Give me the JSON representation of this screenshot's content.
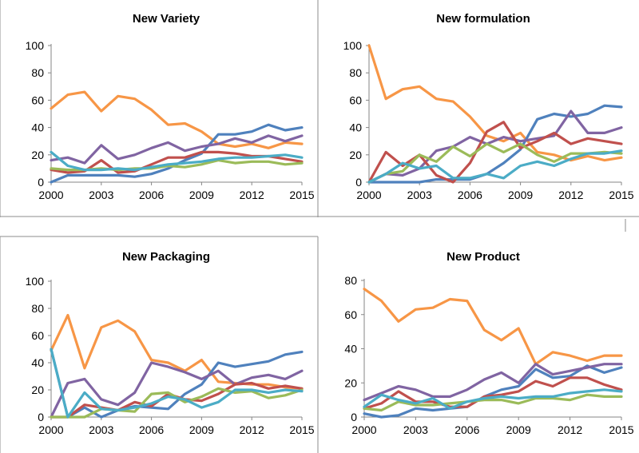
{
  "chart_data": [
    {
      "type": "line",
      "title": "New Variety",
      "xlabel": "",
      "ylabel": "",
      "x": [
        2000,
        2001,
        2002,
        2003,
        2004,
        2005,
        2006,
        2007,
        2008,
        2009,
        2010,
        2011,
        2012,
        2013,
        2014,
        2015
      ],
      "xticks": [
        "2000",
        "2003",
        "2006",
        "2009",
        "2012",
        "2015"
      ],
      "yticks": [
        0,
        20,
        40,
        60,
        80,
        100
      ],
      "ylim": [
        0,
        100
      ],
      "series": [
        {
          "name": "orange",
          "color": "#F79646",
          "values": [
            54,
            64,
            66,
            52,
            63,
            61,
            53,
            42,
            43,
            37,
            28,
            26,
            28,
            25,
            29,
            28
          ]
        },
        {
          "name": "blue",
          "color": "#4F81BD",
          "values": [
            0,
            5,
            5,
            5,
            5,
            4,
            6,
            10,
            16,
            21,
            35,
            35,
            37,
            42,
            38,
            40
          ]
        },
        {
          "name": "purple",
          "color": "#8064A2",
          "values": [
            16,
            18,
            14,
            27,
            17,
            20,
            25,
            29,
            23,
            26,
            28,
            32,
            29,
            34,
            30,
            34
          ]
        },
        {
          "name": "red",
          "color": "#C0504D",
          "values": [
            9,
            7,
            8,
            16,
            7,
            8,
            13,
            18,
            18,
            22,
            22,
            21,
            19,
            19,
            17,
            15
          ]
        },
        {
          "name": "green",
          "color": "#9BBB59",
          "values": [
            10,
            9,
            9,
            10,
            9,
            10,
            10,
            12,
            11,
            13,
            16,
            14,
            15,
            15,
            13,
            14
          ]
        },
        {
          "name": "teal",
          "color": "#4BACC6",
          "values": [
            22,
            12,
            9,
            9,
            10,
            9,
            11,
            13,
            14,
            15,
            17,
            18,
            18,
            19,
            20,
            18
          ]
        }
      ]
    },
    {
      "type": "line",
      "title": "New formulation",
      "xlabel": "",
      "ylabel": "",
      "x": [
        2000,
        2001,
        2002,
        2003,
        2004,
        2005,
        2006,
        2007,
        2008,
        2009,
        2010,
        2011,
        2012,
        2013,
        2014,
        2015
      ],
      "xticks": [
        "2000",
        "2003",
        "2006",
        "2009",
        "2012",
        "2015"
      ],
      "yticks": [
        0,
        20,
        40,
        60,
        80,
        100
      ],
      "ylim": [
        0,
        100
      ],
      "series": [
        {
          "name": "orange",
          "color": "#F79646",
          "values": [
            100,
            61,
            68,
            70,
            61,
            59,
            48,
            34,
            30,
            36,
            22,
            20,
            16,
            19,
            16,
            18
          ]
        },
        {
          "name": "blue",
          "color": "#4F81BD",
          "values": [
            0,
            0,
            0,
            0,
            2,
            2,
            2,
            6,
            14,
            24,
            46,
            50,
            48,
            50,
            56,
            55
          ]
        },
        {
          "name": "purple",
          "color": "#8064A2",
          "values": [
            0,
            6,
            5,
            10,
            23,
            26,
            33,
            28,
            33,
            30,
            32,
            34,
            52,
            36,
            36,
            40
          ]
        },
        {
          "name": "red",
          "color": "#C0504D",
          "values": [
            0,
            22,
            12,
            20,
            5,
            0,
            14,
            37,
            44,
            25,
            30,
            36,
            28,
            32,
            30,
            28
          ]
        },
        {
          "name": "green",
          "color": "#9BBB59",
          "values": [
            0,
            6,
            8,
            20,
            15,
            26,
            19,
            28,
            22,
            28,
            20,
            15,
            21,
            21,
            22,
            21
          ]
        },
        {
          "name": "teal",
          "color": "#4BACC6",
          "values": [
            0,
            6,
            14,
            10,
            12,
            3,
            3,
            6,
            3,
            12,
            15,
            12,
            17,
            21,
            21,
            23
          ]
        }
      ]
    },
    {
      "type": "line",
      "title": "New Packaging",
      "xlabel": "",
      "ylabel": "",
      "x": [
        2000,
        2001,
        2002,
        2003,
        2004,
        2005,
        2006,
        2007,
        2008,
        2009,
        2010,
        2011,
        2012,
        2013,
        2014,
        2015
      ],
      "xticks": [
        "2000",
        "2003",
        "2006",
        "2009",
        "2012",
        "2015"
      ],
      "yticks": [
        0,
        20,
        40,
        60,
        80,
        100
      ],
      "ylim": [
        0,
        100
      ],
      "series": [
        {
          "name": "orange",
          "color": "#F79646",
          "values": [
            49,
            75,
            36,
            66,
            71,
            63,
            42,
            40,
            34,
            42,
            26,
            25,
            24,
            24,
            22,
            21
          ]
        },
        {
          "name": "blue",
          "color": "#4F81BD",
          "values": [
            50,
            0,
            7,
            0,
            5,
            8,
            7,
            6,
            17,
            24,
            40,
            37,
            39,
            41,
            46,
            48
          ]
        },
        {
          "name": "purple",
          "color": "#8064A2",
          "values": [
            0,
            25,
            28,
            13,
            9,
            18,
            40,
            37,
            33,
            28,
            34,
            24,
            29,
            31,
            28,
            34
          ]
        },
        {
          "name": "red",
          "color": "#C0504D",
          "values": [
            0,
            0,
            9,
            7,
            5,
            11,
            8,
            17,
            13,
            12,
            17,
            24,
            25,
            21,
            23,
            21
          ]
        },
        {
          "name": "green",
          "color": "#9BBB59",
          "values": [
            0,
            0,
            0,
            6,
            5,
            4,
            17,
            18,
            11,
            15,
            21,
            18,
            19,
            14,
            16,
            20
          ]
        },
        {
          "name": "teal",
          "color": "#4BACC6",
          "values": [
            50,
            0,
            18,
            6,
            5,
            7,
            10,
            15,
            13,
            7,
            11,
            20,
            20,
            18,
            20,
            19
          ]
        }
      ]
    },
    {
      "type": "line",
      "title": "New Product",
      "xlabel": "",
      "ylabel": "",
      "x": [
        2000,
        2001,
        2002,
        2003,
        2004,
        2005,
        2006,
        2007,
        2008,
        2009,
        2010,
        2011,
        2012,
        2013,
        2014,
        2015
      ],
      "xticks": [
        "2000",
        "2003",
        "2006",
        "2009",
        "2012",
        "2015"
      ],
      "yticks": [
        0,
        20,
        40,
        60,
        80
      ],
      "ylim": [
        0,
        80
      ],
      "series": [
        {
          "name": "orange",
          "color": "#F79646",
          "values": [
            75,
            68,
            56,
            63,
            64,
            69,
            68,
            51,
            45,
            52,
            31,
            38,
            36,
            33,
            36,
            36
          ]
        },
        {
          "name": "blue",
          "color": "#4F81BD",
          "values": [
            2,
            0,
            1,
            5,
            4,
            5,
            6,
            12,
            16,
            18,
            28,
            23,
            24,
            30,
            26,
            29
          ]
        },
        {
          "name": "purple",
          "color": "#8064A2",
          "values": [
            10,
            14,
            18,
            16,
            12,
            12,
            16,
            22,
            26,
            20,
            31,
            25,
            27,
            29,
            31,
            31
          ]
        },
        {
          "name": "red",
          "color": "#C0504D",
          "values": [
            5,
            8,
            15,
            9,
            9,
            6,
            6,
            12,
            13,
            15,
            21,
            18,
            23,
            23,
            19,
            16
          ]
        },
        {
          "name": "green",
          "color": "#9BBB59",
          "values": [
            5,
            4,
            9,
            7,
            7,
            8,
            9,
            10,
            10,
            8,
            11,
            11,
            10,
            13,
            12,
            12
          ]
        },
        {
          "name": "teal",
          "color": "#4BACC6",
          "values": [
            6,
            13,
            10,
            8,
            11,
            5,
            9,
            11,
            12,
            11,
            12,
            12,
            14,
            15,
            16,
            15
          ]
        }
      ]
    }
  ]
}
